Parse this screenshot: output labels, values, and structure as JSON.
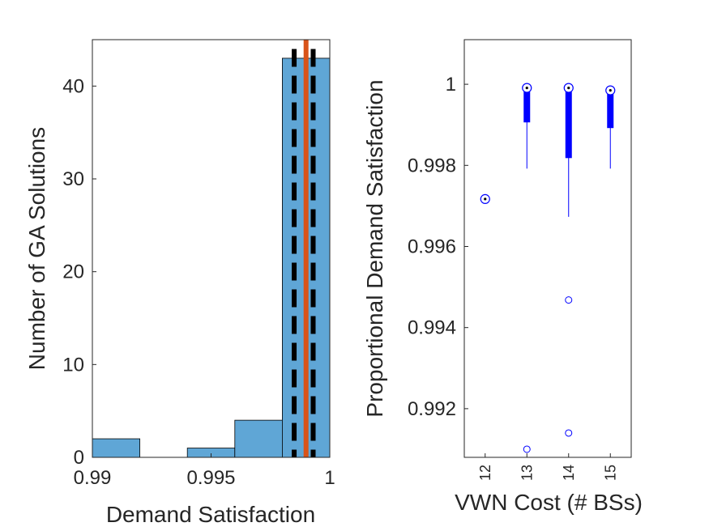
{
  "chart_data": [
    {
      "type": "bar",
      "subtype": "histogram",
      "xlabel": "Demand Satisfaction",
      "ylabel": "Number of GA Solutions",
      "xlim": [
        0.99,
        1.0
      ],
      "ylim": [
        0,
        45
      ],
      "xticks": [
        0.99,
        0.995,
        1.0
      ],
      "xtick_labels": [
        "0.99",
        "0.995",
        "1"
      ],
      "yticks": [
        0,
        10,
        20,
        30,
        40
      ],
      "ytick_labels": [
        "0",
        "10",
        "20",
        "30",
        "40"
      ],
      "bins": [
        {
          "start": 0.99,
          "end": 0.992,
          "count": 2
        },
        {
          "start": 0.992,
          "end": 0.994,
          "count": 0
        },
        {
          "start": 0.994,
          "end": 0.996,
          "count": 1
        },
        {
          "start": 0.996,
          "end": 0.998,
          "count": 4
        },
        {
          "start": 0.998,
          "end": 1.0,
          "count": 43
        }
      ],
      "vertical_lines": [
        {
          "x": 0.9985,
          "style": "dashed",
          "color": "#000000"
        },
        {
          "x": 0.999,
          "style": "solid",
          "color": "#D95319"
        },
        {
          "x": 0.9993,
          "style": "dashed",
          "color": "#000000"
        }
      ],
      "bar_color": "#5FA6D6",
      "grid": false
    },
    {
      "type": "box",
      "xlabel": "VWN Cost (# BSs)",
      "ylabel": "Proportional Demand Satisfaction",
      "ylim": [
        0.9908,
        1.0011
      ],
      "yticks": [
        0.992,
        0.994,
        0.996,
        0.998,
        1.0
      ],
      "ytick_labels": [
        "0.992",
        "0.994",
        "0.996",
        "0.998",
        "1"
      ],
      "categories": [
        "12",
        "13",
        "14",
        "15"
      ],
      "boxes": [
        {
          "label": "12",
          "median": 0.99717,
          "q1": 0.99717,
          "q3": 0.99717,
          "whisker_low": 0.99717,
          "whisker_high": 0.99717,
          "outliers": []
        },
        {
          "label": "13",
          "median": 0.99991,
          "q1": 0.99906,
          "q3": 0.99991,
          "whisker_low": 0.99792,
          "whisker_high": 0.99991,
          "outliers": [
            0.991
          ]
        },
        {
          "label": "14",
          "median": 0.99991,
          "q1": 0.99818,
          "q3": 0.99991,
          "whisker_low": 0.99673,
          "whisker_high": 0.99991,
          "outliers": [
            0.99468,
            0.9914
          ]
        },
        {
          "label": "15",
          "median": 0.99985,
          "q1": 0.99892,
          "q3": 0.99985,
          "whisker_low": 0.99792,
          "whisker_high": 0.99985,
          "outliers": []
        }
      ],
      "box_color": "#0000FF",
      "grid": false
    }
  ]
}
